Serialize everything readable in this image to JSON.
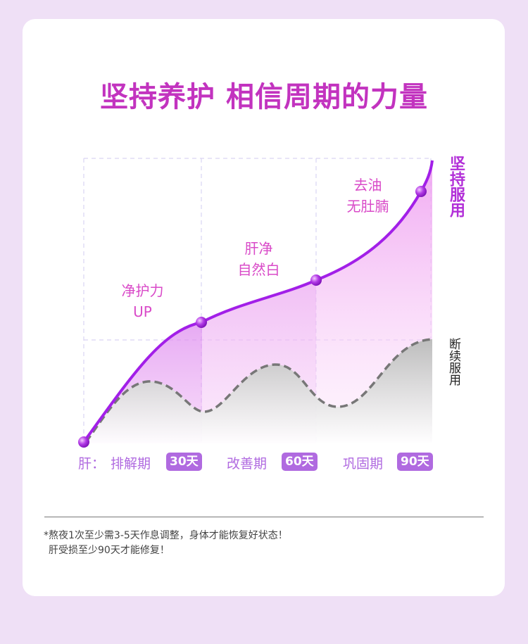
{
  "title": "坚持养护 相信周期的力量",
  "labels": {
    "stage1": "净护力\nUP",
    "stage2": "肝净\n自然白",
    "stage3": "去油\n无肚腩"
  },
  "legend": {
    "persistent": "坚持服用",
    "intermittent": "断续服用"
  },
  "axis": {
    "name": "肝：",
    "stages": [
      {
        "name": "排解期",
        "badge": "30天"
      },
      {
        "name": "改善期",
        "badge": "60天"
      },
      {
        "name": "巩固期",
        "badge": "90天"
      }
    ]
  },
  "notes": [
    "*熬夜1次至少需3-5天作息调整，身体才能恢复好状态！",
    "肝受损至少90天才能修复！"
  ],
  "colors": {
    "title": "#c233bf",
    "curve": "#a21fe8",
    "badge": "#b06ae0",
    "label": "#d94ac8"
  }
}
